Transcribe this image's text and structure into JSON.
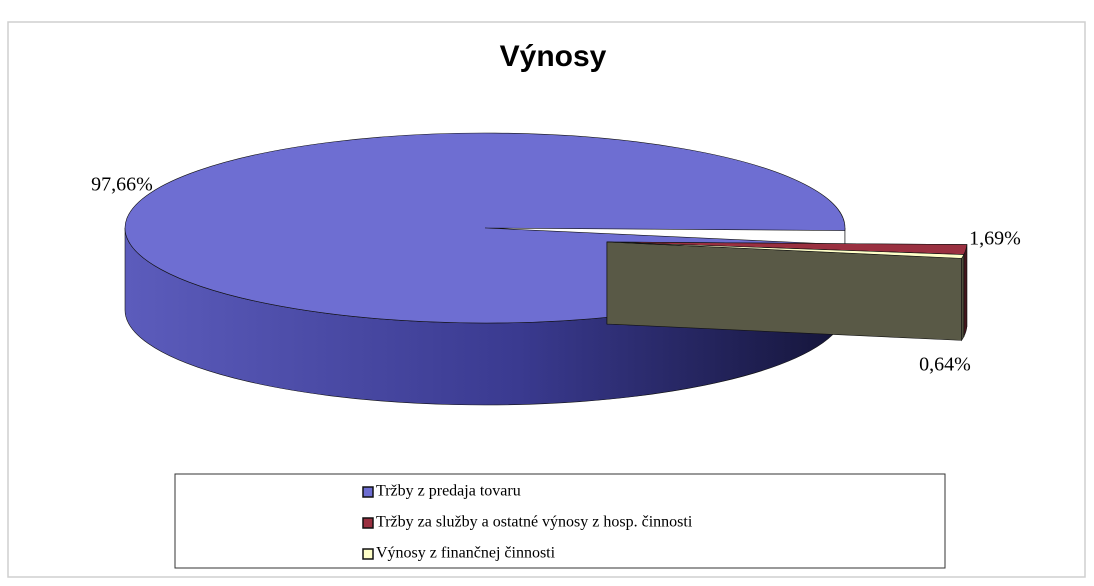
{
  "chart_data": {
    "type": "pie3d",
    "title": "Výnosy",
    "categories": [
      "Tržby z predaja tovaru",
      "Tržby za služby a ostatné výnosy z hosp. činnosti",
      "Výnosy z finančnej činnosti"
    ],
    "values": [
      97.66,
      1.69,
      0.64
    ],
    "value_labels": [
      "97,66%",
      "1,69%",
      "0,64%"
    ],
    "colors": [
      "#6e6ed2",
      "#9a3040",
      "#ffffc8"
    ]
  }
}
